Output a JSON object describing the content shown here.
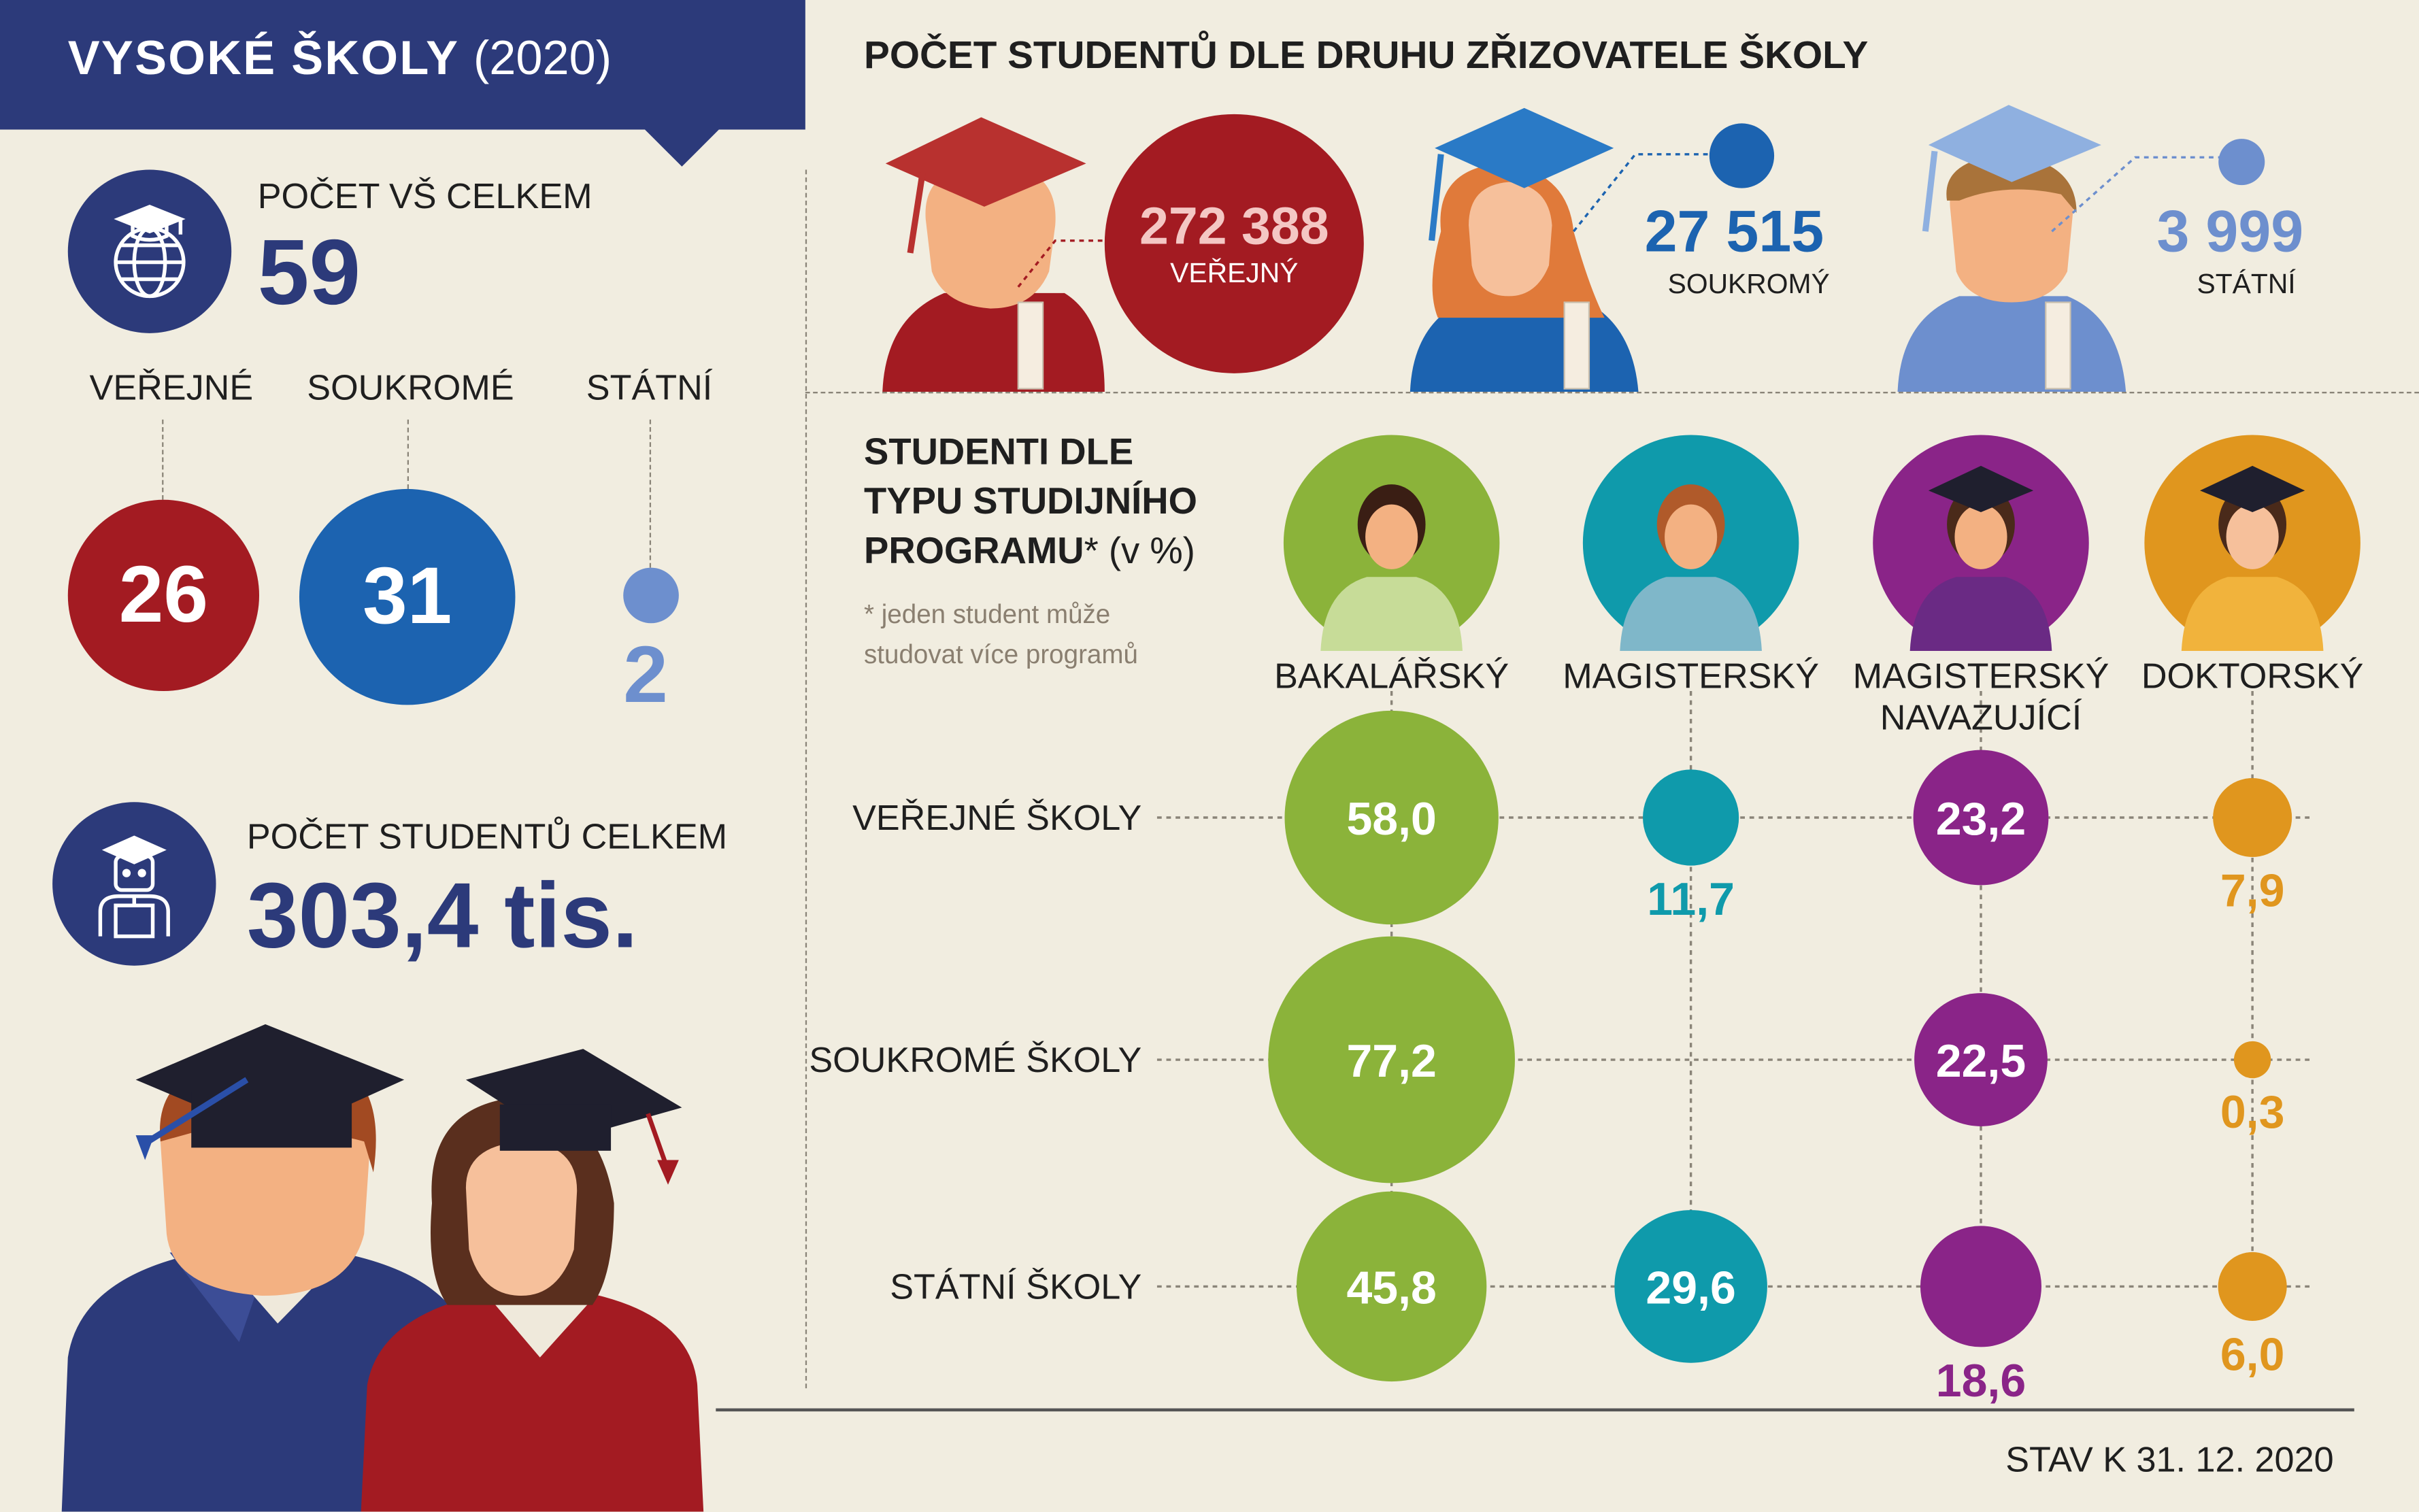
{
  "header": {
    "title": "VYSOKÉ ŠKOLY",
    "year": "(2020)"
  },
  "schools": {
    "label": "POČET VŠ CELKEM",
    "total": "59",
    "groups": [
      {
        "label": "VEŘEJNÉ",
        "value": "26",
        "color": "#a31b22"
      },
      {
        "label": "SOUKROMÉ",
        "value": "31",
        "color": "#1c63b0"
      },
      {
        "label": "STÁTNÍ",
        "value": "2",
        "color": "#6d8fce"
      }
    ]
  },
  "students_total": {
    "label": "POČET STUDENTŮ CELKEM",
    "value": "303,4 tis."
  },
  "by_founder": {
    "title": "POČET STUDENTŮ DLE DRUHU ZŘIZOVATELE ŠKOLY",
    "items": [
      {
        "value": "272 388",
        "label": "VEŘEJNÝ",
        "color": "#a31b22"
      },
      {
        "value": "27 515",
        "label": "SOUKROMÝ",
        "color": "#1c63b0"
      },
      {
        "value": "3 999",
        "label": "STÁTNÍ",
        "color": "#6d8fce"
      }
    ]
  },
  "chart_data": {
    "type": "bubble",
    "title_lines": [
      "STUDENTI DLE",
      "TYPU STUDIJNÍHO",
      "PROGRAMU"
    ],
    "title_suffix": "* (v %)",
    "note_lines": [
      "* jeden student může",
      "studovat více programů"
    ],
    "categories": [
      {
        "label_lines": [
          "BAKALÁŘSKÝ"
        ],
        "color": "#8bb33a"
      },
      {
        "label_lines": [
          "MAGISTERSKÝ"
        ],
        "color": "#0f9aab"
      },
      {
        "label_lines": [
          "MAGISTERSKÝ",
          "NAVAZUJÍCÍ"
        ],
        "color": "#8a2488"
      },
      {
        "label_lines": [
          "DOKTORSKÝ"
        ],
        "color": "#e0961e"
      }
    ],
    "series": [
      {
        "name": "VEŘEJNÉ ŠKOLY",
        "values": [
          58.0,
          11.7,
          23.2,
          7.9
        ],
        "labels": [
          "58,0",
          "11,7",
          "23,2",
          "7,9"
        ]
      },
      {
        "name": "SOUKROMÉ ŠKOLY",
        "values": [
          77.2,
          null,
          22.5,
          0.3
        ],
        "labels": [
          "77,2",
          "",
          "22,5",
          "0,3"
        ]
      },
      {
        "name": "STÁTNÍ ŠKOLY",
        "values": [
          45.8,
          29.6,
          18.6,
          6.0
        ],
        "labels": [
          "45,8",
          "29,6",
          "18,6",
          "6,0"
        ]
      }
    ]
  },
  "footer": {
    "date": "STAV K 31. 12. 2020"
  }
}
